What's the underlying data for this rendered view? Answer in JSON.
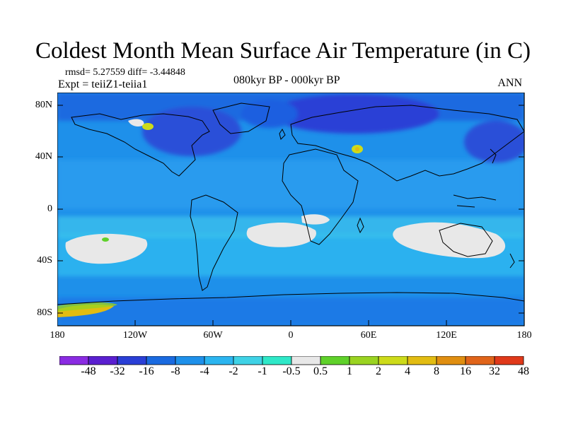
{
  "title": "Coldest Month Mean Surface Air Temperature (in C)",
  "stats": "rmsd= 5.27559 diff= -3.44848",
  "experiment": "Expt = teiiZ1-teiia1",
  "period": "080kyr BP - 000kyr BP",
  "season": "ANN",
  "y_ticks": [
    "80N",
    "40N",
    "0",
    "40S",
    "80S"
  ],
  "x_ticks": [
    "180",
    "120W",
    "60W",
    "0",
    "60E",
    "120E",
    "180"
  ],
  "colorbar": {
    "labels": [
      "-48",
      "-32",
      "-16",
      "-8",
      "-4",
      "-2",
      "-1",
      "-0.5",
      "0.5",
      "1",
      "2",
      "4",
      "8",
      "16",
      "32",
      "48"
    ],
    "colors": [
      "#8a2be2",
      "#5a1fd0",
      "#2a3fd6",
      "#1a6ae0",
      "#1e90ea",
      "#2bb5f0",
      "#3fd2e6",
      "#2fe8c8",
      "#e8e8e8",
      "#5fd12a",
      "#9ad321",
      "#cddb1a",
      "#e2bc12",
      "#e08e10",
      "#e0641a",
      "#e0391a"
    ]
  }
}
